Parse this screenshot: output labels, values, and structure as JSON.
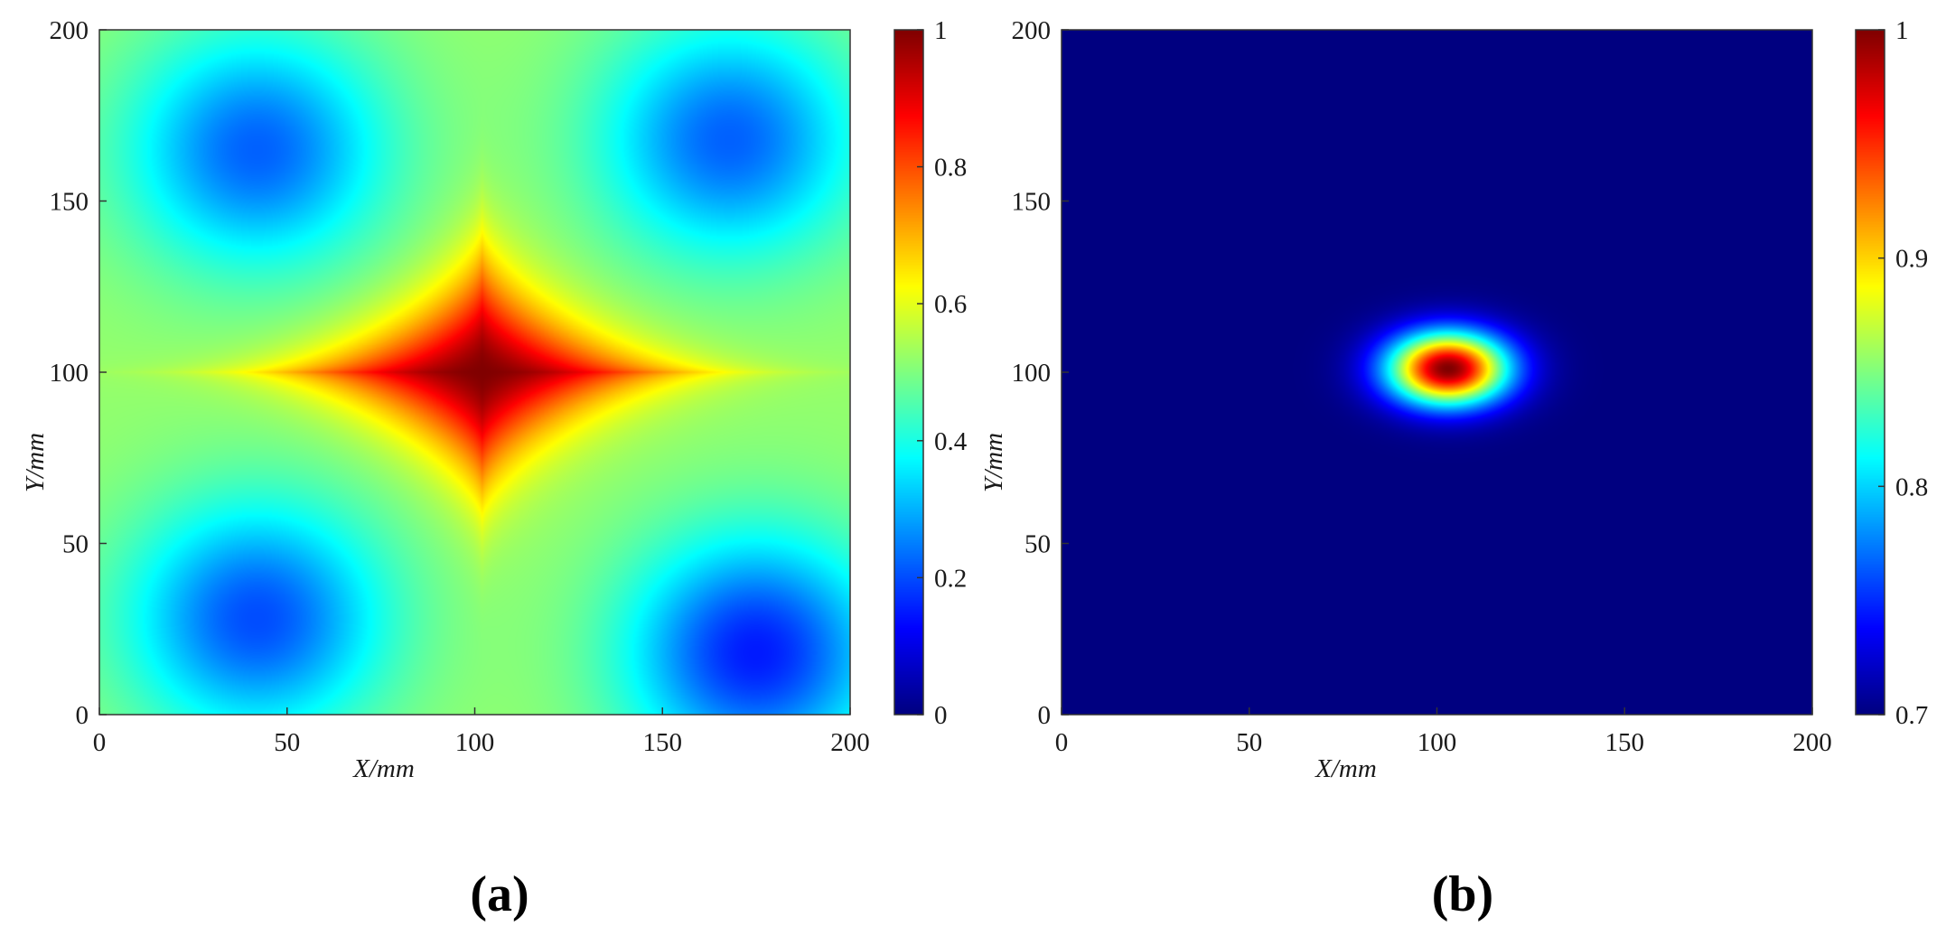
{
  "chart_data": [
    {
      "type": "heatmap",
      "panel_label": "(a)",
      "xlabel": "X/mm",
      "ylabel": "Y/mm",
      "xlim": [
        0,
        200
      ],
      "ylim": [
        0,
        200
      ],
      "xticks": [
        "0",
        "50",
        "100",
        "150",
        "200"
      ],
      "yticks": [
        "0",
        "50",
        "100",
        "150",
        "200"
      ],
      "colormap": "jet",
      "colorbar": {
        "range": [
          0,
          1
        ],
        "ticks": [
          "0",
          "0.2",
          "0.4",
          "0.6",
          "0.8",
          "1"
        ]
      },
      "field": {
        "baseline": 0.52,
        "peak": {
          "x": 102,
          "y": 100,
          "value": 1.0,
          "shape": "diamond"
        },
        "minima": [
          {
            "x": 42,
            "y": 165,
            "value": 0.22
          },
          {
            "x": 168,
            "y": 168,
            "value": 0.22
          },
          {
            "x": 42,
            "y": 28,
            "value": 0.2
          },
          {
            "x": 175,
            "y": 18,
            "value": 0.15
          }
        ]
      }
    },
    {
      "type": "heatmap",
      "panel_label": "(b)",
      "xlabel": "X/mm",
      "ylabel": "Y/mm",
      "xlim": [
        0,
        200
      ],
      "ylim": [
        0,
        200
      ],
      "xticks": [
        "0",
        "50",
        "100",
        "150",
        "200"
      ],
      "yticks": [
        "0",
        "50",
        "100",
        "150",
        "200"
      ],
      "colormap": "jet",
      "colorbar": {
        "range": [
          0.7,
          1
        ],
        "ticks": [
          "0.7",
          "0.8",
          "0.9",
          "1"
        ]
      },
      "field": {
        "baseline": 0.7,
        "peak": {
          "x": 103,
          "y": 101,
          "value": 1.0,
          "shape": "ellipse",
          "half_width_x": 15,
          "half_width_y": 10
        }
      }
    }
  ]
}
